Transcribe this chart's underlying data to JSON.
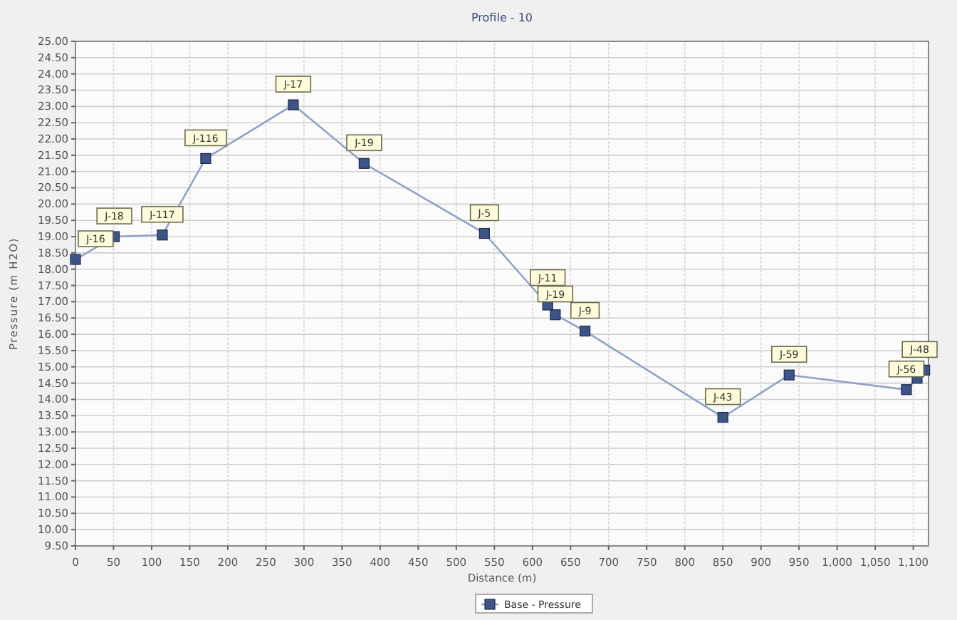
{
  "chart_data": {
    "type": "line",
    "title": "Profile - 10",
    "xlabel": "Distance (m)",
    "ylabel": "Pressure (m H2O)",
    "xlim": [
      0,
      1120
    ],
    "ylim": [
      9.5,
      25
    ],
    "xticks": [
      0,
      50,
      100,
      150,
      200,
      250,
      300,
      350,
      400,
      450,
      500,
      550,
      600,
      650,
      700,
      750,
      800,
      850,
      900,
      950,
      {
        "value": 1000,
        "label": "1,000"
      },
      {
        "value": 1050,
        "label": "1,050"
      },
      {
        "value": 1100,
        "label": "1,100"
      }
    ],
    "yticks": [
      {
        "value": 9.5,
        "label": "9.50"
      },
      {
        "value": 10,
        "label": "10.00"
      },
      {
        "value": 10.5,
        "label": "10.50"
      },
      {
        "value": 11,
        "label": "11.00"
      },
      {
        "value": 11.5,
        "label": "11.50"
      },
      {
        "value": 12,
        "label": "12.00"
      },
      {
        "value": 12.5,
        "label": "12.50"
      },
      {
        "value": 13,
        "label": "13.00"
      },
      {
        "value": 13.5,
        "label": "13.50"
      },
      {
        "value": 14,
        "label": "14.00"
      },
      {
        "value": 14.5,
        "label": "14.50"
      },
      {
        "value": 15,
        "label": "15.00"
      },
      {
        "value": 15.5,
        "label": "15.50"
      },
      {
        "value": 16,
        "label": "16.00"
      },
      {
        "value": 16.5,
        "label": "16.50"
      },
      {
        "value": 17,
        "label": "17.00"
      },
      {
        "value": 17.5,
        "label": "17.50"
      },
      {
        "value": 18,
        "label": "18.00"
      },
      {
        "value": 18.5,
        "label": "18.50"
      },
      {
        "value": 19,
        "label": "19.00"
      },
      {
        "value": 19.5,
        "label": "19.50"
      },
      {
        "value": 20,
        "label": "20.00"
      },
      {
        "value": 20.5,
        "label": "20.50"
      },
      {
        "value": 21,
        "label": "21.00"
      },
      {
        "value": 21.5,
        "label": "21.50"
      },
      {
        "value": 22,
        "label": "22.00"
      },
      {
        "value": 22.5,
        "label": "22.50"
      },
      {
        "value": 23,
        "label": "23.00"
      },
      {
        "value": 23.5,
        "label": "23.50"
      },
      {
        "value": 24,
        "label": "24.00"
      },
      {
        "value": 24.5,
        "label": "24.50"
      },
      {
        "value": 25,
        "label": "25.00"
      }
    ],
    "x": [
      0,
      51,
      114,
      171,
      286,
      379,
      537,
      620,
      630,
      669,
      850,
      937,
      1091,
      1105,
      1115
    ],
    "series": [
      {
        "name": "Base - Pressure",
        "color": "#3d5488",
        "values": [
          18.3,
          19.0,
          19.05,
          21.4,
          23.05,
          21.25,
          19.1,
          16.9,
          16.6,
          16.1,
          13.45,
          14.75,
          14.3,
          14.65,
          14.9
        ]
      }
    ],
    "annotations": [
      {
        "text": "J-16",
        "x": 0,
        "y": 18.3
      },
      {
        "text": "J-18",
        "x": 51,
        "y": 19.0
      },
      {
        "text": "J-117",
        "x": 114,
        "y": 19.05
      },
      {
        "text": "J-116",
        "x": 171,
        "y": 21.4
      },
      {
        "text": "J-17",
        "x": 286,
        "y": 23.05
      },
      {
        "text": "J-19",
        "x": 379,
        "y": 21.25
      },
      {
        "text": "J-5",
        "x": 537,
        "y": 19.1
      },
      {
        "text": "J-11",
        "x": 620,
        "y": 16.9
      },
      {
        "text": "J-19",
        "x": 630,
        "y": 16.6
      },
      {
        "text": "J-9",
        "x": 669,
        "y": 16.1
      },
      {
        "text": "J-43",
        "x": 850,
        "y": 13.45
      },
      {
        "text": "J-59",
        "x": 937,
        "y": 14.75
      },
      {
        "text": "J-56",
        "x": 1091,
        "y": 14.3
      },
      {
        "text": "J-48",
        "x": 1115,
        "y": 14.9
      }
    ],
    "grid": true,
    "legend": "bottom",
    "marker": "square",
    "line_style": "solid"
  }
}
